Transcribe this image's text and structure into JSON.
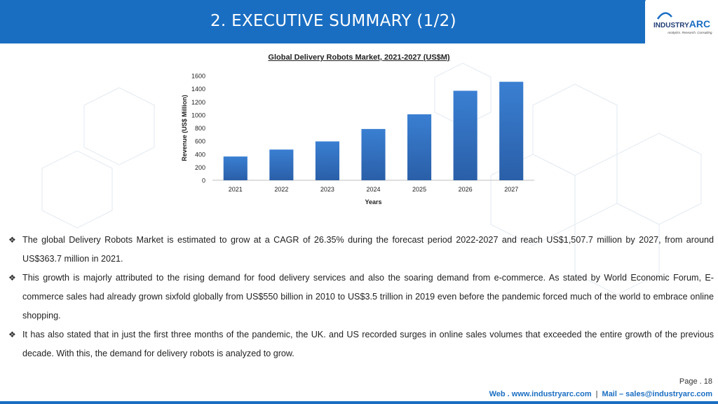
{
  "header": {
    "title": "2. EXECUTIVE SUMMARY (1/2)",
    "logo_main": "INDUSTRY",
    "logo_accent": "ARC",
    "logo_tagline": "Analytics. Research. Consulting"
  },
  "chart_data": {
    "type": "bar",
    "title": "Global Delivery Robots Market, 2021-2027 (US$M)",
    "xlabel": "Years",
    "ylabel": "Revenue (US$ Million)",
    "categories": [
      "2021",
      "2022",
      "2023",
      "2024",
      "2025",
      "2026",
      "2027"
    ],
    "values": [
      363.7,
      470,
      595,
      785,
      1010,
      1370,
      1507.7
    ],
    "ylim": [
      0,
      1600
    ],
    "yticks": [
      "0",
      "200",
      "400",
      "600",
      "800",
      "1000",
      "1200",
      "1400",
      "1600"
    ],
    "grid": false,
    "bar_color": "#2a6fc4"
  },
  "bullets": [
    "The global Delivery Robots Market is estimated to grow at a CAGR of 26.35% during the forecast period 2022-2027 and reach US$1,507.7 million by 2027, from around US$363.7 million in 2021.",
    "This growth is majorly attributed to the rising demand for food delivery services and also the soaring demand from e-commerce. As stated by World Economic Forum, E-commerce sales had already grown sixfold globally from US$550 billion in 2010 to US$3.5 trillion in 2019 even before the pandemic forced much of the world to embrace online shopping.",
    "It has also stated that in just the first three months of the pandemic, the UK. and US recorded surges in online sales volumes that exceeded the entire growth of the previous decade. With this, the demand for delivery robots is analyzed to grow."
  ],
  "bullet_icon": "diamond-bullet-icon",
  "footer": {
    "page": "Page . 18",
    "web": "Web . www.industryarc.com",
    "separator": "|",
    "mail": "Mail – sales@industryarc.com"
  },
  "colors": {
    "accent": "#1a6ec2",
    "logo_dark": "#1f3d73"
  }
}
